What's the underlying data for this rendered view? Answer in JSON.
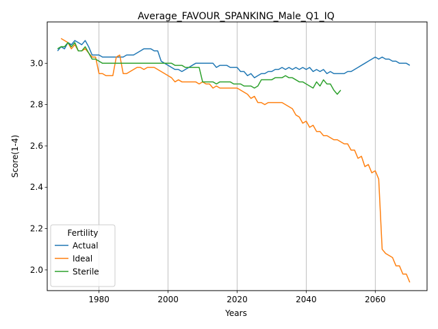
{
  "chart_data": {
    "type": "line",
    "title": "Average_FAVOUR_SPANKING_Male_Q1_IQ",
    "xlabel": "Years",
    "ylabel": "Score(1-4)",
    "xlim": [
      1965,
      2075
    ],
    "ylim": [
      1.9,
      3.2
    ],
    "xticks": [
      1980,
      2000,
      2020,
      2040,
      2060
    ],
    "yticks": [
      2.0,
      2.2,
      2.4,
      2.6,
      2.8,
      3.0
    ],
    "ytick_labels": [
      "2.0",
      "2.2",
      "2.4",
      "2.6",
      "2.8",
      "3.0"
    ],
    "grid": "x-only",
    "legend": {
      "title": "Fertility",
      "placement": "lower-left"
    },
    "series": [
      {
        "name": "Actual",
        "color": "#1f77b4",
        "x": [
          1968,
          1969,
          1970,
          1971,
          1972,
          1973,
          1974,
          1975,
          1976,
          1977,
          1978,
          1979,
          1980,
          1981,
          1982,
          1983,
          1984,
          1985,
          1986,
          1987,
          1988,
          1989,
          1990,
          1991,
          1992,
          1993,
          1994,
          1995,
          1996,
          1997,
          1998,
          1999,
          2000,
          2001,
          2002,
          2003,
          2004,
          2005,
          2006,
          2007,
          2008,
          2009,
          2010,
          2011,
          2012,
          2013,
          2014,
          2015,
          2016,
          2017,
          2018,
          2019,
          2020,
          2021,
          2022,
          2023,
          2024,
          2025,
          2026,
          2027,
          2028,
          2029,
          2030,
          2031,
          2032,
          2033,
          2034,
          2035,
          2036,
          2037,
          2038,
          2039,
          2040,
          2041,
          2042,
          2043,
          2044,
          2045,
          2046,
          2047,
          2048,
          2049,
          2050,
          2051,
          2052,
          2053,
          2054,
          2055,
          2056,
          2057,
          2058,
          2059,
          2060,
          2061,
          2062,
          2063,
          2064,
          2065,
          2066,
          2067,
          2068,
          2069,
          2070
        ],
        "values": [
          3.06,
          3.08,
          3.07,
          3.1,
          3.09,
          3.11,
          3.1,
          3.09,
          3.11,
          3.08,
          3.04,
          3.04,
          3.04,
          3.03,
          3.03,
          3.03,
          3.03,
          3.03,
          3.03,
          3.03,
          3.04,
          3.04,
          3.04,
          3.05,
          3.06,
          3.07,
          3.07,
          3.07,
          3.06,
          3.06,
          3.01,
          3.0,
          2.99,
          2.98,
          2.97,
          2.97,
          2.96,
          2.97,
          2.98,
          2.99,
          3.0,
          3.0,
          3.0,
          3.0,
          3.0,
          3.0,
          2.98,
          2.99,
          2.99,
          2.99,
          2.98,
          2.98,
          2.98,
          2.96,
          2.96,
          2.94,
          2.95,
          2.93,
          2.94,
          2.95,
          2.95,
          2.96,
          2.96,
          2.97,
          2.97,
          2.98,
          2.97,
          2.98,
          2.97,
          2.98,
          2.97,
          2.98,
          2.97,
          2.98,
          2.96,
          2.97,
          2.96,
          2.97,
          2.95,
          2.96,
          2.95,
          2.95,
          2.95,
          2.95,
          2.96,
          2.96,
          2.97,
          2.98,
          2.99,
          3.0,
          3.01,
          3.02,
          3.03,
          3.02,
          3.03,
          3.02,
          3.02,
          3.01,
          3.01,
          3.0,
          3.0,
          3.0,
          2.99
        ]
      },
      {
        "name": "Ideal",
        "color": "#ff7f0e",
        "x": [
          1969,
          1970,
          1971,
          1972,
          1973,
          1974,
          1975,
          1976,
          1977,
          1978,
          1979,
          1980,
          1981,
          1982,
          1983,
          1984,
          1985,
          1986,
          1987,
          1988,
          1989,
          1990,
          1991,
          1992,
          1993,
          1994,
          1995,
          1996,
          1997,
          1998,
          1999,
          2000,
          2001,
          2002,
          2003,
          2004,
          2005,
          2006,
          2007,
          2008,
          2009,
          2010,
          2011,
          2012,
          2013,
          2014,
          2015,
          2016,
          2017,
          2018,
          2019,
          2020,
          2021,
          2022,
          2023,
          2024,
          2025,
          2026,
          2027,
          2028,
          2029,
          2030,
          2031,
          2032,
          2033,
          2034,
          2035,
          2036,
          2037,
          2038,
          2039,
          2040,
          2041,
          2042,
          2043,
          2044,
          2045,
          2046,
          2047,
          2048,
          2049,
          2050,
          2051,
          2052,
          2053,
          2054,
          2055,
          2056,
          2057,
          2058,
          2059,
          2060,
          2061,
          2062,
          2063,
          2064,
          2065,
          2066,
          2067,
          2068,
          2069,
          2070
        ],
        "values": [
          3.12,
          3.11,
          3.1,
          3.07,
          3.09,
          3.06,
          3.06,
          3.07,
          3.05,
          3.03,
          3.03,
          2.95,
          2.95,
          2.94,
          2.94,
          2.94,
          3.03,
          3.04,
          2.95,
          2.95,
          2.96,
          2.97,
          2.98,
          2.98,
          2.97,
          2.98,
          2.98,
          2.98,
          2.97,
          2.96,
          2.95,
          2.94,
          2.93,
          2.91,
          2.92,
          2.91,
          2.91,
          2.91,
          2.91,
          2.91,
          2.9,
          2.91,
          2.9,
          2.9,
          2.88,
          2.89,
          2.88,
          2.88,
          2.88,
          2.88,
          2.88,
          2.88,
          2.87,
          2.86,
          2.85,
          2.83,
          2.84,
          2.81,
          2.81,
          2.8,
          2.81,
          2.81,
          2.81,
          2.81,
          2.81,
          2.8,
          2.79,
          2.78,
          2.75,
          2.74,
          2.71,
          2.72,
          2.69,
          2.7,
          2.67,
          2.67,
          2.65,
          2.65,
          2.64,
          2.63,
          2.63,
          2.62,
          2.61,
          2.61,
          2.58,
          2.58,
          2.54,
          2.55,
          2.5,
          2.51,
          2.47,
          2.48,
          2.44,
          2.1,
          2.08,
          2.07,
          2.06,
          2.02,
          2.02,
          1.98,
          1.98,
          1.94
        ]
      },
      {
        "name": "Sterile",
        "color": "#2ca02c",
        "x": [
          1968,
          1969,
          1970,
          1971,
          1972,
          1973,
          1974,
          1975,
          1976,
          1977,
          1978,
          1979,
          1980,
          1981,
          1982,
          1983,
          1984,
          1985,
          1986,
          1987,
          1988,
          1989,
          1990,
          1991,
          1992,
          1993,
          1994,
          1995,
          1996,
          1997,
          1998,
          1999,
          2000,
          2001,
          2002,
          2003,
          2004,
          2005,
          2006,
          2007,
          2008,
          2009,
          2010,
          2011,
          2012,
          2013,
          2014,
          2015,
          2016,
          2017,
          2018,
          2019,
          2020,
          2021,
          2022,
          2023,
          2024,
          2025,
          2026,
          2027,
          2028,
          2029,
          2030,
          2031,
          2032,
          2033,
          2034,
          2035,
          2036,
          2037,
          2038,
          2039,
          2040,
          2041,
          2042,
          2043,
          2044,
          2045,
          2046,
          2047,
          2048,
          2049,
          2050
        ],
        "values": [
          3.07,
          3.08,
          3.08,
          3.1,
          3.08,
          3.1,
          3.06,
          3.06,
          3.08,
          3.05,
          3.02,
          3.02,
          3.01,
          3.0,
          3.0,
          3.0,
          3.0,
          3.0,
          3.0,
          3.0,
          3.0,
          3.0,
          3.0,
          3.0,
          3.0,
          3.0,
          3.0,
          3.0,
          3.0,
          3.0,
          3.0,
          3.0,
          3.0,
          3.0,
          2.99,
          2.99,
          2.99,
          2.98,
          2.98,
          2.98,
          2.98,
          2.98,
          2.91,
          2.91,
          2.91,
          2.91,
          2.9,
          2.91,
          2.91,
          2.91,
          2.91,
          2.9,
          2.9,
          2.9,
          2.89,
          2.89,
          2.89,
          2.88,
          2.89,
          2.92,
          2.92,
          2.92,
          2.92,
          2.93,
          2.93,
          2.93,
          2.94,
          2.93,
          2.93,
          2.92,
          2.91,
          2.91,
          2.9,
          2.89,
          2.88,
          2.91,
          2.89,
          2.92,
          2.9,
          2.9,
          2.87,
          2.85,
          2.87
        ]
      }
    ]
  }
}
